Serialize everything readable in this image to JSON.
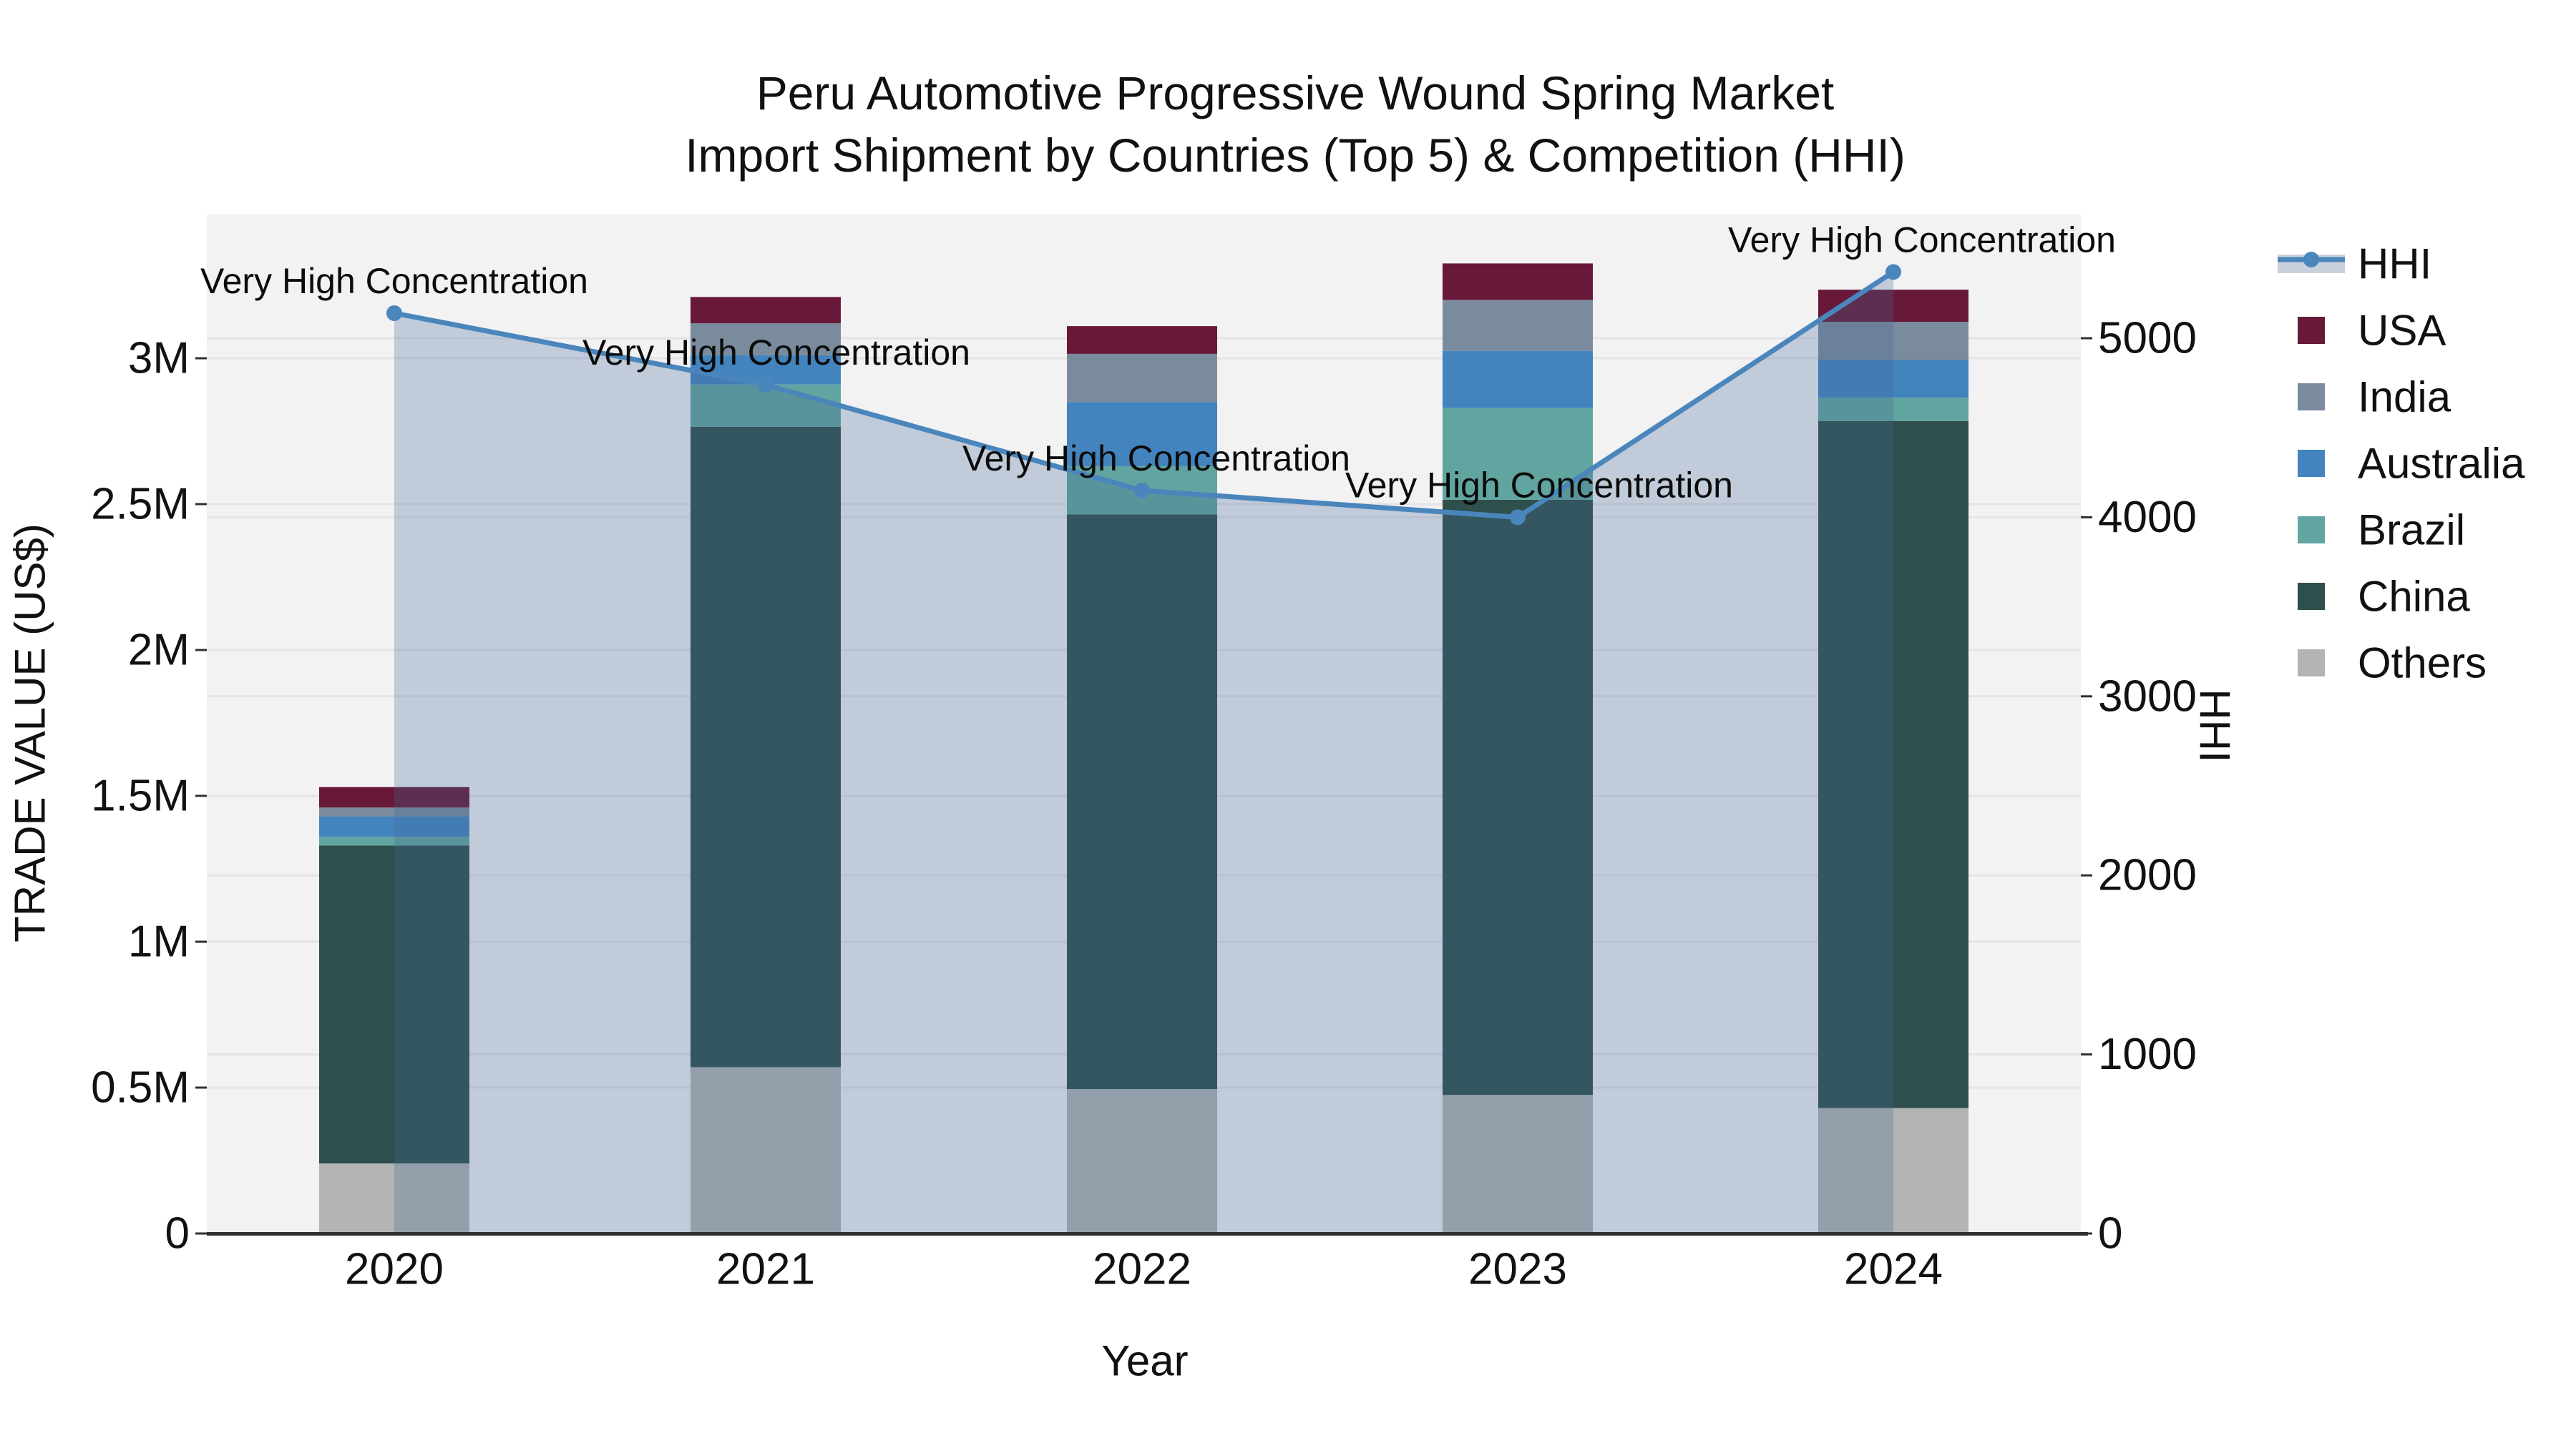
{
  "chart_data": {
    "type": "bar+line",
    "title_line1": "Peru Automotive Progressive Wound Spring Market",
    "title_line2": "Import Shipment by Countries (Top 5) & Competition (HHI)",
    "xlabel": "Year",
    "ylabel_left": "TRADE VALUE (US$)",
    "ylabel_right": "HHI",
    "years": [
      "2020",
      "2021",
      "2022",
      "2023",
      "2024"
    ],
    "stack_order_bottom_to_top": [
      "Others",
      "China",
      "Brazil",
      "Australia",
      "India",
      "USA"
    ],
    "series": [
      {
        "name": "USA",
        "color": "#681838",
        "values": [
          70000,
          90000,
          95000,
          125000,
          110000
        ]
      },
      {
        "name": "India",
        "color": "#7A8B9D",
        "values": [
          30000,
          110000,
          165000,
          175000,
          130000
        ]
      },
      {
        "name": "Australia",
        "color": "#4384BE",
        "values": [
          70000,
          100000,
          220000,
          195000,
          130000
        ]
      },
      {
        "name": "Brazil",
        "color": "#61A5A0",
        "values": [
          30000,
          145000,
          165000,
          315000,
          80000
        ]
      },
      {
        "name": "China",
        "color": "#2E4F4B",
        "values": [
          1090000,
          2195000,
          1970000,
          2040000,
          2355000
        ]
      },
      {
        "name": "Others",
        "color": "#B3B5B4",
        "values": [
          240000,
          570000,
          495000,
          475000,
          430000
        ]
      }
    ],
    "hhi": {
      "name": "HHI",
      "color": "#4A86BC",
      "fill_color": "rgba(70,105,150,0.28)",
      "legend_band_color": "#C9D0DB",
      "values": [
        5140,
        4740,
        4150,
        4000,
        5370
      ]
    },
    "annotations": [
      {
        "year": "2020",
        "text": "Very High Concentration"
      },
      {
        "year": "2021",
        "text": "Very High Concentration"
      },
      {
        "year": "2022",
        "text": "Very High Concentration"
      },
      {
        "year": "2023",
        "text": "Very High Concentration"
      },
      {
        "year": "2024",
        "text": "Very High Concentration"
      }
    ],
    "left_axis": {
      "tick_labels": [
        "0",
        "0.5M",
        "1M",
        "1.5M",
        "2M",
        "2.5M",
        "3M"
      ],
      "tick_values": [
        0,
        500000,
        1000000,
        1500000,
        2000000,
        2500000,
        3000000
      ],
      "range": [
        0,
        3490000
      ]
    },
    "right_axis": {
      "tick_labels": [
        "0",
        "1000",
        "2000",
        "3000",
        "4000",
        "5000"
      ],
      "tick_values": [
        0,
        1000,
        2000,
        3000,
        4000,
        5000
      ],
      "range": [
        0,
        5690
      ]
    },
    "grid": true,
    "legend_position": "top-right"
  },
  "legend": {
    "items": [
      "HHI",
      "USA",
      "India",
      "Australia",
      "Brazil",
      "China",
      "Others"
    ]
  },
  "colors": {
    "plot_background": "#F2F2F3",
    "gridline": "#E4E4E6",
    "axis_line": "#303030",
    "text": "#111111"
  }
}
